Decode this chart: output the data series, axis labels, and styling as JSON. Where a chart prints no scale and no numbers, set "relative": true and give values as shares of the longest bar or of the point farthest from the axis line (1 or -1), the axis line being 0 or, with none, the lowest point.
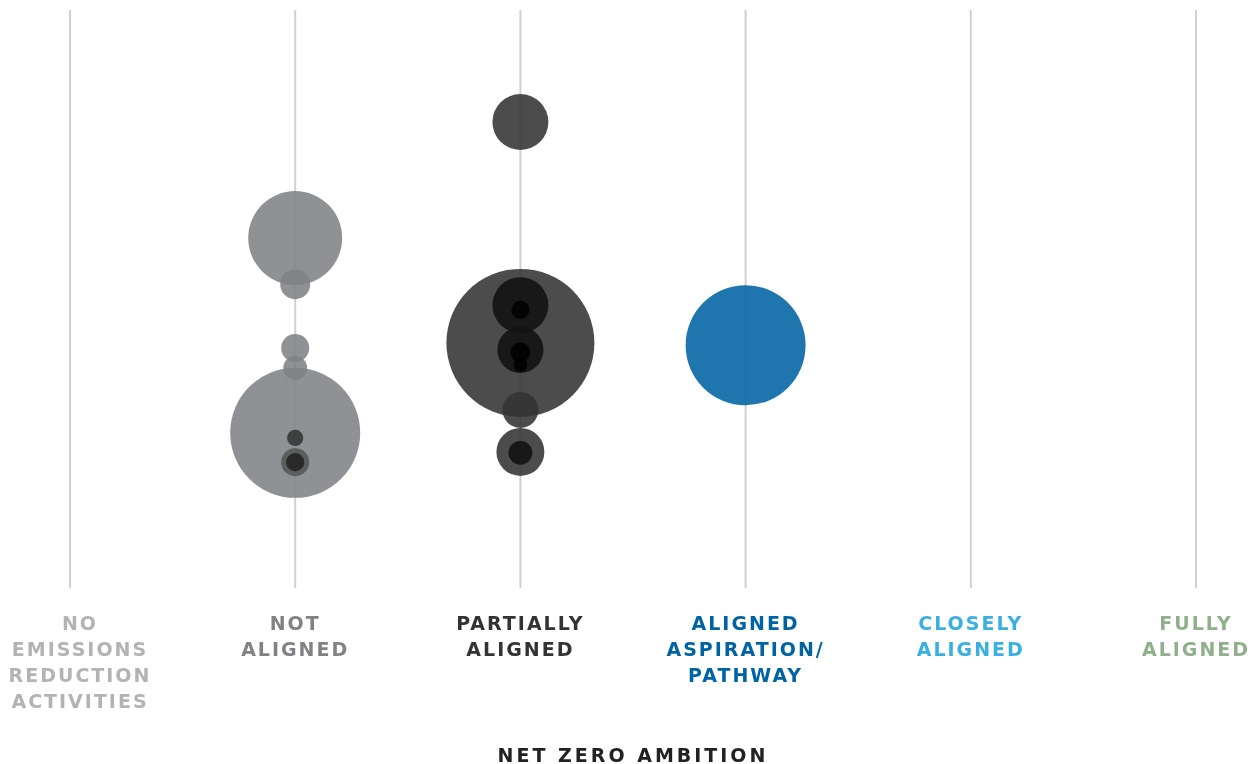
{
  "chart_data": {
    "type": "bubble",
    "relative": true,
    "xlabel": "NET ZERO AMBITION",
    "grid": "x",
    "categories": [
      "NO EMISSIONS REDUCTION ACTIVITIES",
      "NOT ALIGNED",
      "PARTIALLY ALIGNED",
      "ALIGNED ASPIRATION/PATHWAY",
      "CLOSELY ALIGNED",
      "FULLY ALIGNED"
    ],
    "series": [
      {
        "color": "#b3b3b3",
        "values": [
          null,
          null,
          null,
          null,
          null,
          null
        ]
      },
      {
        "color": "#808285",
        "x": [
          "NOT ALIGNED",
          "NOT ALIGNED",
          "NOT ALIGNED",
          "NOT ALIGNED",
          "NOT ALIGNED",
          "NOT ALIGNED",
          "NOT ALIGNED",
          "NOT ALIGNED"
        ],
        "values": [
          0.751,
          0.652,
          0.515,
          0.472,
          0.333,
          0.322,
          0.27,
          0.27
        ],
        "sizes": [
          0.403,
          0.041,
          0.036,
          0.026,
          0.772,
          0.012,
          0.036,
          0.015
        ],
        "colors": [
          "#808285",
          "#808285",
          "#808285",
          "#808285",
          "#808285",
          "#333333",
          "#555555",
          "#222222"
        ]
      },
      {
        "color": "#333333",
        "x": [
          "PARTIALLY ALIGNED",
          "PARTIALLY ALIGNED",
          "PARTIALLY ALIGNED",
          "PARTIALLY ALIGNED",
          "PARTIALLY ALIGNED",
          "PARTIALLY ALIGNED",
          "PARTIALLY ALIGNED",
          "PARTIALLY ALIGNED",
          "PARTIALLY ALIGNED",
          "PARTIALLY ALIGNED"
        ],
        "values": [
          1,
          0.526,
          0.607,
          0.597,
          0.511,
          0.506,
          0.479,
          0.382,
          0.292,
          0.29
        ],
        "sizes": [
          0.143,
          1,
          0.143,
          0.015,
          0.097,
          0.018,
          0.009,
          0.059,
          0.105,
          0.026
        ],
        "colors": [
          "#333333",
          "#333333",
          "#111111",
          "#000000",
          "#111111",
          "#000000",
          "#000000",
          "#333333",
          "#333333",
          "#111111"
        ]
      },
      {
        "color": "#0063a3",
        "x": [
          "ALIGNED ASPIRATION/PATHWAY"
        ],
        "values": [
          0.521
        ],
        "sizes": [
          0.657
        ]
      },
      {
        "color": "#3ab0e2",
        "values": [
          null,
          null,
          null,
          null,
          null,
          null
        ]
      },
      {
        "color": "#8fb08a",
        "values": [
          null,
          null,
          null,
          null,
          null,
          null
        ]
      }
    ]
  }
}
